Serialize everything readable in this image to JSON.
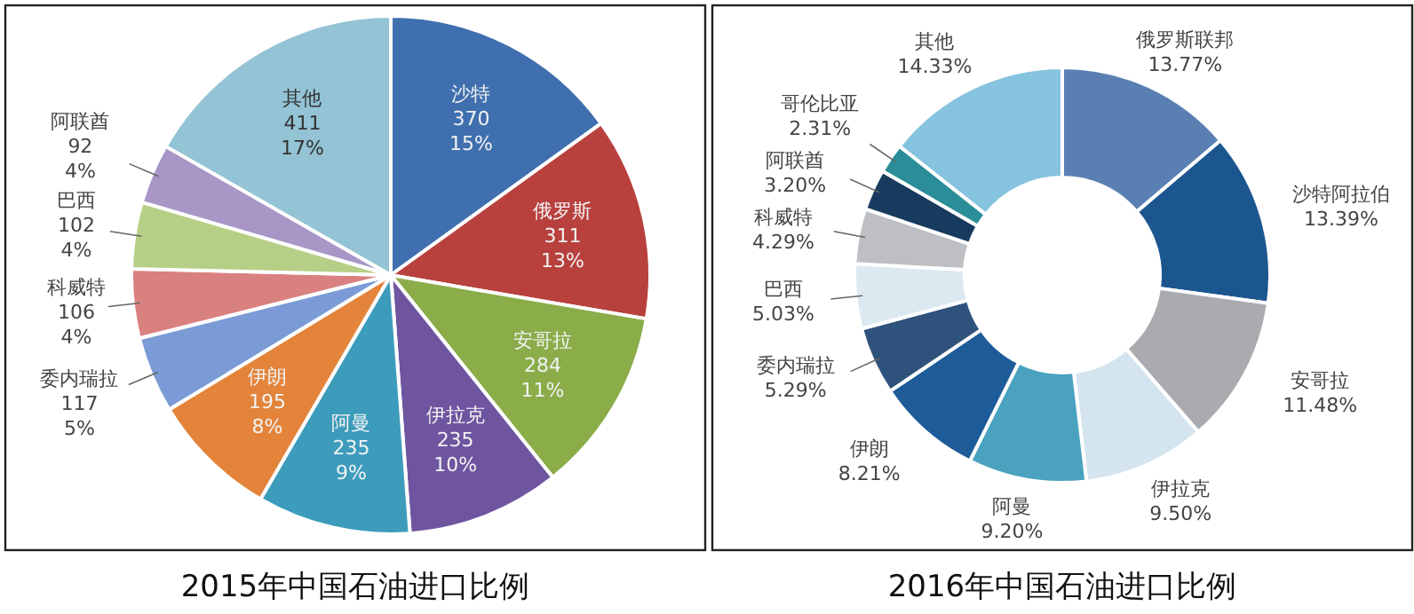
{
  "chart_data": [
    {
      "type": "pie",
      "title": "2015年中国石油进口比例",
      "categories": [
        "沙特",
        "俄罗斯",
        "安哥拉",
        "伊拉克",
        "阿曼",
        "伊朗",
        "委内瑞拉",
        "科威特",
        "巴西",
        "阿联酋",
        "其他"
      ],
      "values": [
        370,
        311,
        284,
        235,
        235,
        195,
        117,
        106,
        102,
        92,
        411
      ],
      "colors": [
        "#3f6fae",
        "#b8403d",
        "#8aad4a",
        "#6f55a0",
        "#3d9cbc",
        "#e3843a",
        "#7b9bd6",
        "#d98080",
        "#b6cf86",
        "#a796c6",
        "#93c3d4"
      ],
      "value_labels": [
        "370\n15%",
        "311\n13%",
        "284\n11%",
        "235\n10%",
        "235\n9%",
        "195\n8%",
        "117\n5%",
        "106\n4%",
        "102\n4%",
        "92\n4%",
        "411\n17%"
      ]
    },
    {
      "type": "donut",
      "title": "2016年中国石油进口比例",
      "categories": [
        "俄罗斯联邦",
        "沙特阿拉伯",
        "安哥拉",
        "伊拉克",
        "阿曼",
        "伊朗",
        "委内瑞拉",
        "巴西",
        "科威特",
        "阿联酋",
        "哥伦比亚",
        "其他"
      ],
      "values": [
        13.77,
        13.39,
        11.48,
        9.5,
        9.2,
        8.21,
        5.29,
        5.03,
        4.29,
        3.2,
        2.31,
        14.33
      ],
      "colors": [
        "#5a80b3",
        "#1c568f",
        "#a9abae",
        "#d5e5ef",
        "#4aa2bf",
        "#1d5c99",
        "#2f527c",
        "#dde9f1",
        "#bdbfc2",
        "#173a5e",
        "#2a8d98",
        "#86c3df"
      ],
      "value_labels": [
        "13.77%",
        "13.39%",
        "11.48%",
        "9.50%",
        "9.20%",
        "8.21%",
        "5.29%",
        "5.03%",
        "4.29%",
        "3.20%",
        "2.31%",
        "14.33%"
      ]
    }
  ]
}
